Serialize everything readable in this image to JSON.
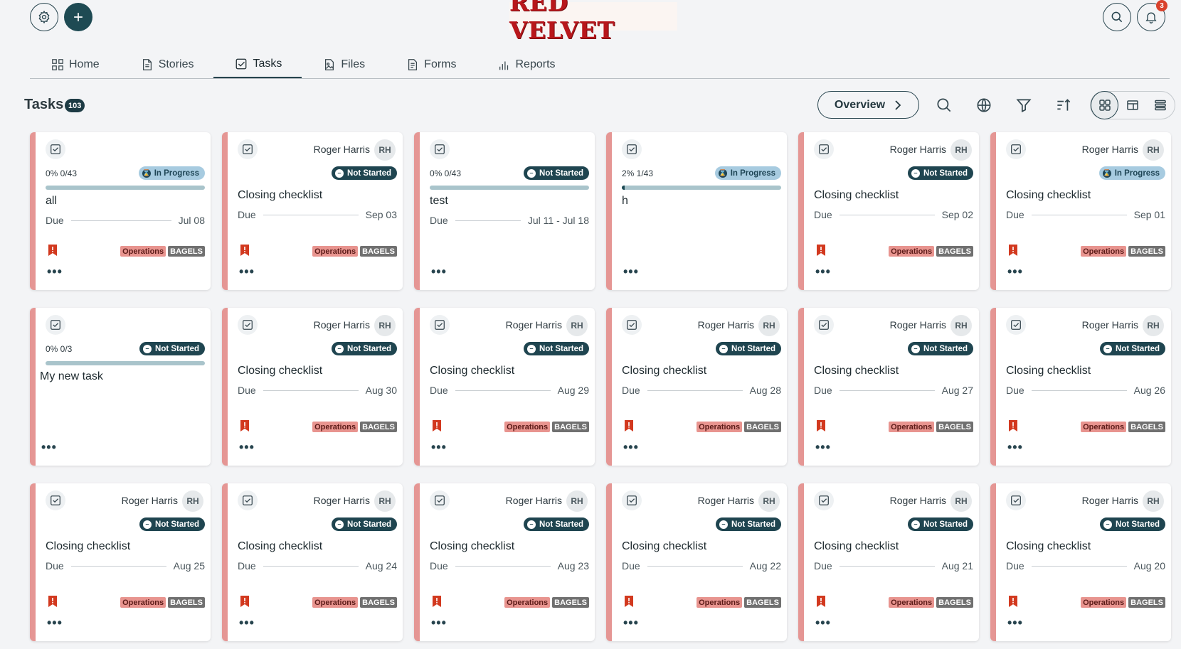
{
  "brand": {
    "name": "RED VELVET"
  },
  "header": {
    "notifications_count": "3"
  },
  "tabs": [
    {
      "label": "Home",
      "icon": "grid-icon"
    },
    {
      "label": "Stories",
      "icon": "document-icon"
    },
    {
      "label": "Tasks",
      "icon": "checkbox-icon",
      "active": true
    },
    {
      "label": "Files",
      "icon": "image-file-icon"
    },
    {
      "label": "Forms",
      "icon": "form-icon"
    },
    {
      "label": "Reports",
      "icon": "bar-chart-icon"
    }
  ],
  "section": {
    "title": "Tasks",
    "count": "103",
    "overview_label": "Overview"
  },
  "colors": {
    "accent": "#1e4a53",
    "card_stripe": "#e59694",
    "flag": "#d2391f",
    "brand_red": "#b8171c"
  },
  "cards": [
    {
      "variant": "progress",
      "progress_text": "0% 0/43",
      "progress": 0,
      "status": "In Progress",
      "status_kind": "in-progress",
      "title": "all",
      "due_label": "Due",
      "due": "Jul 08",
      "flag": true,
      "tags": [
        "Operations",
        "BAGELS"
      ]
    },
    {
      "variant": "owner",
      "owner": "Roger Harris",
      "initials": "RH",
      "status": "Not Started",
      "status_kind": "not-started",
      "title": "Closing checklist",
      "due_label": "Due",
      "due": "Sep 03",
      "flag": true,
      "tags": [
        "Operations",
        "BAGELS"
      ]
    },
    {
      "variant": "progress",
      "progress_text": "0% 0/43",
      "progress": 0,
      "status": "Not Started",
      "status_kind": "not-started",
      "title": "test",
      "due_label": "Due",
      "due": "Jul 11 - Jul 18",
      "flag": false,
      "tags": []
    },
    {
      "variant": "progress",
      "progress_text": "2% 1/43",
      "progress": 0.02,
      "status": "In Progress",
      "status_kind": "in-progress",
      "title": "h",
      "due_label": "",
      "due": "",
      "flag": false,
      "tags": []
    },
    {
      "variant": "owner",
      "owner": "Roger Harris",
      "initials": "RH",
      "status": "Not Started",
      "status_kind": "not-started",
      "title": "Closing checklist",
      "due_label": "Due",
      "due": "Sep 02",
      "flag": true,
      "tags": [
        "Operations",
        "BAGELS"
      ]
    },
    {
      "variant": "owner",
      "owner": "Roger Harris",
      "initials": "RH",
      "status": "In Progress",
      "status_kind": "in-progress",
      "title": "Closing checklist",
      "due_label": "Due",
      "due": "Sep 01",
      "flag": true,
      "tags": [
        "Operations",
        "BAGELS"
      ]
    },
    {
      "variant": "progress-nodue",
      "progress_text": "0% 0/3",
      "progress": 0,
      "status": "Not Started",
      "status_kind": "not-started",
      "title": "My new task",
      "due_label": "",
      "due": "",
      "flag": false,
      "tags": []
    },
    {
      "variant": "owner",
      "owner": "Roger Harris",
      "initials": "RH",
      "status": "Not Started",
      "status_kind": "not-started",
      "title": "Closing checklist",
      "due_label": "Due",
      "due": "Aug 30",
      "flag": true,
      "tags": [
        "Operations",
        "BAGELS"
      ]
    },
    {
      "variant": "owner",
      "owner": "Roger Harris",
      "initials": "RH",
      "status": "Not Started",
      "status_kind": "not-started",
      "title": "Closing checklist",
      "due_label": "Due",
      "due": "Aug 29",
      "flag": true,
      "tags": [
        "Operations",
        "BAGELS"
      ]
    },
    {
      "variant": "owner",
      "owner": "Roger Harris",
      "initials": "RH",
      "status": "Not Started",
      "status_kind": "not-started",
      "title": "Closing checklist",
      "due_label": "Due",
      "due": "Aug 28",
      "flag": true,
      "tags": [
        "Operations",
        "BAGELS"
      ]
    },
    {
      "variant": "owner",
      "owner": "Roger Harris",
      "initials": "RH",
      "status": "Not Started",
      "status_kind": "not-started",
      "title": "Closing checklist",
      "due_label": "Due",
      "due": "Aug 27",
      "flag": true,
      "tags": [
        "Operations",
        "BAGELS"
      ]
    },
    {
      "variant": "owner",
      "owner": "Roger Harris",
      "initials": "RH",
      "status": "Not Started",
      "status_kind": "not-started",
      "title": "Closing checklist",
      "due_label": "Due",
      "due": "Aug 26",
      "flag": true,
      "tags": [
        "Operations",
        "BAGELS"
      ]
    },
    {
      "variant": "owner",
      "owner": "Roger Harris",
      "initials": "RH",
      "status": "Not Started",
      "status_kind": "not-started",
      "title": "Closing checklist",
      "due_label": "Due",
      "due": "Aug 25",
      "flag": true,
      "tags": [
        "Operations",
        "BAGELS"
      ]
    },
    {
      "variant": "owner",
      "owner": "Roger Harris",
      "initials": "RH",
      "status": "Not Started",
      "status_kind": "not-started",
      "title": "Closing checklist",
      "due_label": "Due",
      "due": "Aug 24",
      "flag": true,
      "tags": [
        "Operations",
        "BAGELS"
      ]
    },
    {
      "variant": "owner",
      "owner": "Roger Harris",
      "initials": "RH",
      "status": "Not Started",
      "status_kind": "not-started",
      "title": "Closing checklist",
      "due_label": "Due",
      "due": "Aug 23",
      "flag": true,
      "tags": [
        "Operations",
        "BAGELS"
      ]
    },
    {
      "variant": "owner",
      "owner": "Roger Harris",
      "initials": "RH",
      "status": "Not Started",
      "status_kind": "not-started",
      "title": "Closing checklist",
      "due_label": "Due",
      "due": "Aug 22",
      "flag": true,
      "tags": [
        "Operations",
        "BAGELS"
      ]
    },
    {
      "variant": "owner",
      "owner": "Roger Harris",
      "initials": "RH",
      "status": "Not Started",
      "status_kind": "not-started",
      "title": "Closing checklist",
      "due_label": "Due",
      "due": "Aug 21",
      "flag": true,
      "tags": [
        "Operations",
        "BAGELS"
      ]
    },
    {
      "variant": "owner",
      "owner": "Roger Harris",
      "initials": "RH",
      "status": "Not Started",
      "status_kind": "not-started",
      "title": "Closing checklist",
      "due_label": "Due",
      "due": "Aug 20",
      "flag": true,
      "tags": [
        "Operations",
        "BAGELS"
      ]
    }
  ]
}
